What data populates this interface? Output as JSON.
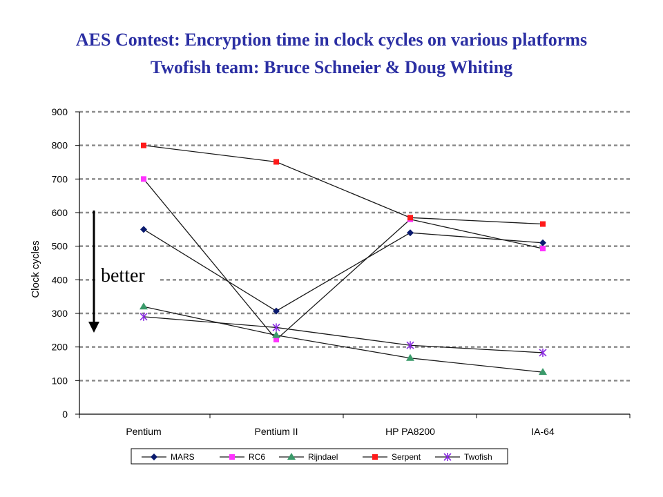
{
  "header": {
    "title": "AES Contest: Encryption time in clock cycles on various platforms",
    "subtitle": "Twofish team: Bruce Schneier & Doug Whiting"
  },
  "annotation": {
    "text": "better"
  },
  "chart_data": {
    "type": "line",
    "categories": [
      "Pentium",
      "Pentium II",
      "HP PA8200",
      "IA-64"
    ],
    "ylabel": "Clock cycles",
    "xlabel": "",
    "ylim": [
      0,
      900
    ],
    "yticks": [
      "0",
      "100",
      "200",
      "300",
      "400",
      "500",
      "600",
      "700",
      "800",
      "900"
    ],
    "grid": true,
    "legend_position": "bottom",
    "series": [
      {
        "name": "MARS",
        "values": [
          550,
          307,
          540,
          510
        ],
        "color": "#0a1a6e",
        "marker": "diamond"
      },
      {
        "name": "RC6",
        "values": [
          700,
          222,
          580,
          493
        ],
        "color": "#ff33ff",
        "marker": "square"
      },
      {
        "name": "Rijndael",
        "values": [
          320,
          235,
          167,
          125
        ],
        "color": "#3a9a6a",
        "marker": "triangle"
      },
      {
        "name": "Serpent",
        "values": [
          800,
          751,
          585,
          566
        ],
        "color": "#ff1a1a",
        "marker": "square"
      },
      {
        "name": "Twofish",
        "values": [
          290,
          258,
          205,
          183
        ],
        "color": "#8a2be2",
        "marker": "star"
      }
    ]
  }
}
